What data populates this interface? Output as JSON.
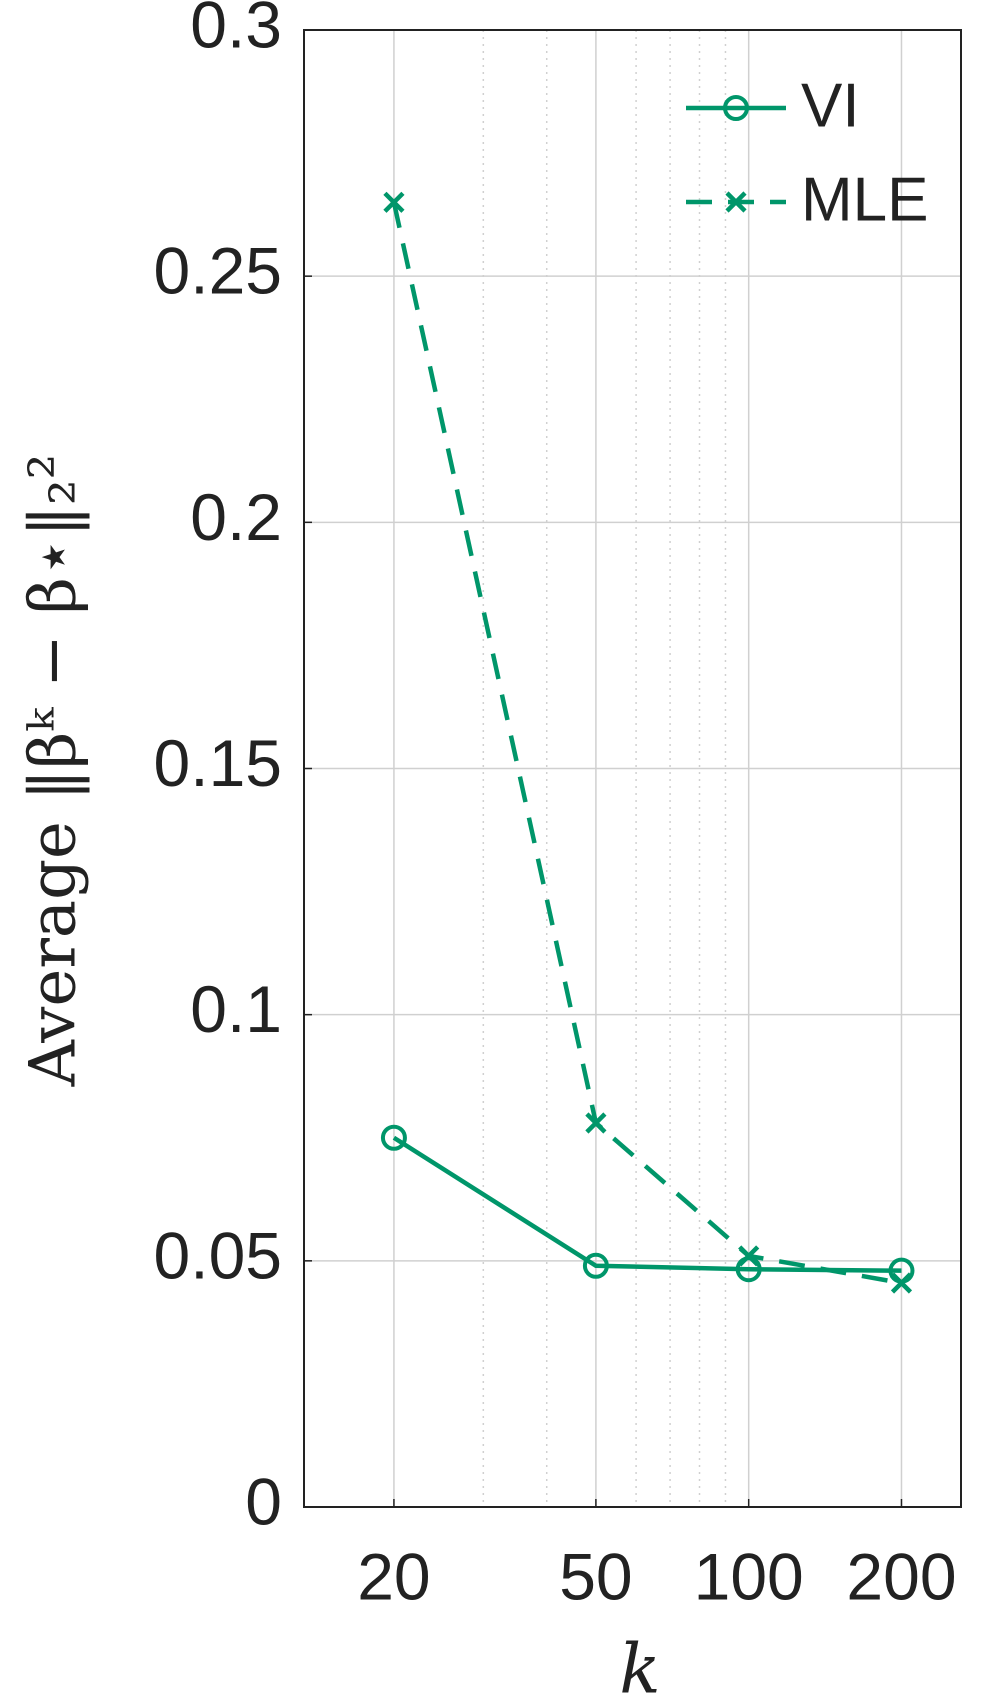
{
  "chart_data": {
    "type": "line",
    "x": [
      20,
      50,
      100,
      200
    ],
    "series": [
      {
        "name": "VI",
        "color": "#00966a",
        "marker": "circle",
        "dash": "solid",
        "values": [
          0.075,
          0.049,
          0.0483,
          0.048
        ]
      },
      {
        "name": "MLE",
        "color": "#00966a",
        "marker": "x",
        "dash": "dashed",
        "values": [
          0.265,
          0.078,
          0.051,
          0.0455
        ]
      }
    ],
    "xlabel": "k",
    "ylabel": "Average ‖βᵏ − β⋆‖₂²",
    "xscale": "log",
    "xlim": [
      13.3,
      262
    ],
    "xticks": [
      20,
      50,
      100,
      200
    ],
    "xminorticks": [
      30,
      40,
      60,
      70,
      80,
      90
    ],
    "ylim": [
      0,
      0.3
    ],
    "yticks": [
      0,
      0.05,
      0.1,
      0.15,
      0.2,
      0.25,
      0.3
    ],
    "grid": true,
    "legend": "top-right"
  }
}
